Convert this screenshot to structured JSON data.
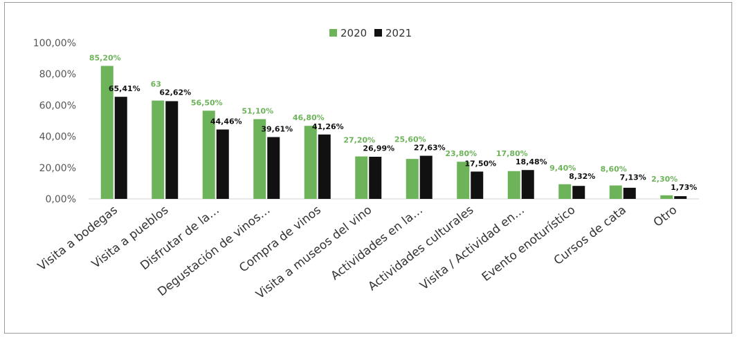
{
  "chart_data": {
    "type": "bar",
    "title": "",
    "xlabel": "",
    "ylabel": "",
    "ylim": [
      0,
      100
    ],
    "yticks": [
      "0,00%",
      "20,00%",
      "40,00%",
      "60,00%",
      "80,00%",
      "100,00%"
    ],
    "grid": false,
    "legend_position": "top",
    "categories": [
      "Visita a bodegas",
      "Visita a pueblos",
      "Disfrutar de la…",
      "Degustación de vinos…",
      "Compra de vinos",
      "Visita a museos del vino",
      "Actividades en la…",
      "Actividades culturales",
      "Visita / Actividad en…",
      "Evento enoturístico",
      "Cursos de cata",
      "Otro"
    ],
    "series": [
      {
        "name": "2020",
        "color": "#6db35a",
        "values": [
          85.2,
          63,
          56.5,
          51.1,
          46.8,
          27.2,
          25.6,
          23.8,
          17.8,
          9.4,
          8.6,
          2.3
        ],
        "labels": [
          "85,20%",
          "63",
          "56,50%",
          "51,10%",
          "46,80%",
          "27,20%",
          "25,60%",
          "23,80%",
          "17,80%",
          "9,40%",
          "8,60%",
          "2,30%"
        ]
      },
      {
        "name": "2021",
        "color": "#111111",
        "values": [
          65.41,
          62.62,
          44.46,
          39.61,
          41.26,
          26.99,
          27.63,
          17.5,
          18.48,
          8.32,
          7.13,
          1.73
        ],
        "labels": [
          "65,41%",
          "62,62%",
          "44,46%",
          "39,61%",
          "41,26%",
          "26,99%",
          "27,63%",
          "17,50%",
          "18,48%",
          "8,32%",
          "7,13%",
          "1,73%"
        ]
      }
    ]
  }
}
